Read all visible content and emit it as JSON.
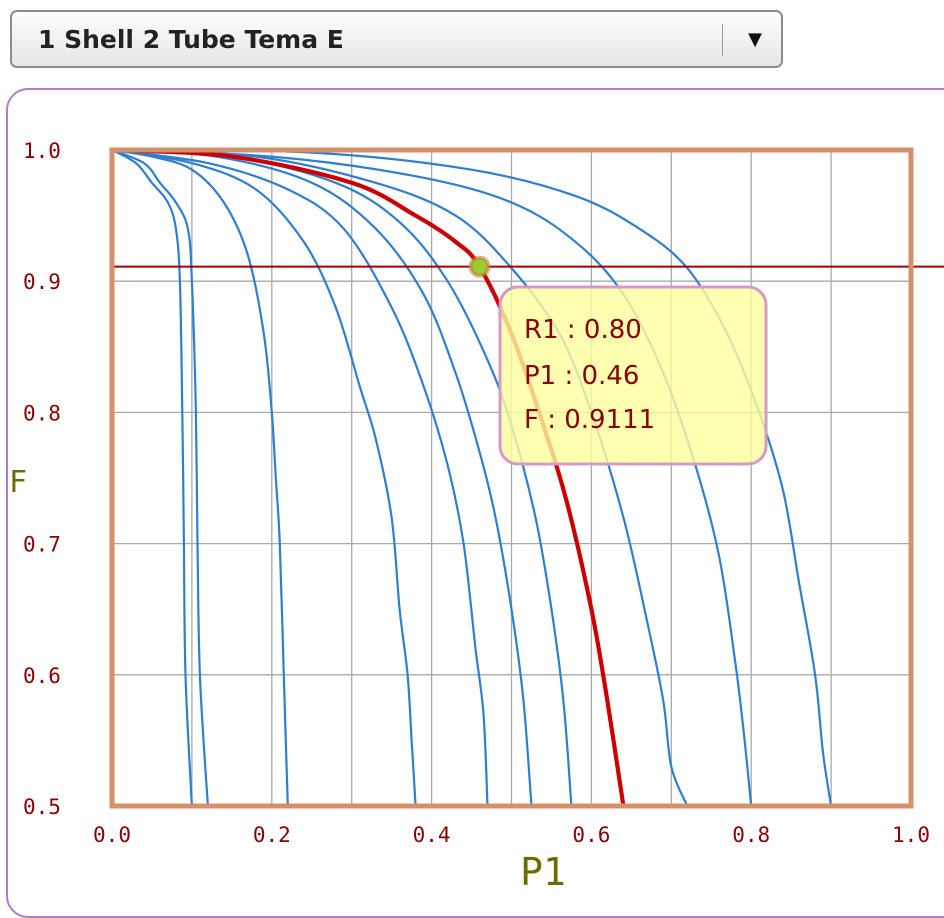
{
  "dropdown": {
    "selected": "1 Shell 2 Tube Tema E",
    "arrow_icon": "triangle-down-icon"
  },
  "chart_data": {
    "type": "line",
    "xlabel": "P1",
    "ylabel": "F",
    "xlim": [
      0.0,
      1.0
    ],
    "ylim": [
      0.5,
      1.0
    ],
    "x_ticks": [
      "0.0",
      "0.2",
      "0.4",
      "0.6",
      "0.8",
      "1.0"
    ],
    "y_ticks": [
      "1.0",
      "0.9",
      "0.8",
      "0.7",
      "0.6",
      "0.5"
    ],
    "grid": true,
    "series": [
      {
        "values": [
          [
            0.0,
            1.0
          ],
          [
            0.03,
            0.99
          ],
          [
            0.05,
            0.975
          ],
          [
            0.07,
            0.96
          ],
          [
            0.08,
            0.94
          ],
          [
            0.085,
            0.9
          ],
          [
            0.088,
            0.8
          ],
          [
            0.09,
            0.7
          ],
          [
            0.092,
            0.6
          ],
          [
            0.1,
            0.5
          ]
        ]
      },
      {
        "values": [
          [
            0.0,
            1.0
          ],
          [
            0.04,
            0.99
          ],
          [
            0.06,
            0.975
          ],
          [
            0.08,
            0.96
          ],
          [
            0.095,
            0.94
          ],
          [
            0.1,
            0.9
          ],
          [
            0.105,
            0.8
          ],
          [
            0.107,
            0.7
          ],
          [
            0.11,
            0.6
          ],
          [
            0.12,
            0.5
          ]
        ]
      },
      {
        "values": [
          [
            0.0,
            1.0
          ],
          [
            0.05,
            0.995
          ],
          [
            0.1,
            0.985
          ],
          [
            0.14,
            0.96
          ],
          [
            0.17,
            0.92
          ],
          [
            0.19,
            0.86
          ],
          [
            0.2,
            0.8
          ],
          [
            0.205,
            0.75
          ],
          [
            0.21,
            0.7
          ],
          [
            0.215,
            0.6
          ],
          [
            0.22,
            0.5
          ]
        ]
      },
      {
        "values": [
          [
            0.0,
            1.0
          ],
          [
            0.1,
            0.99
          ],
          [
            0.18,
            0.97
          ],
          [
            0.24,
            0.93
          ],
          [
            0.28,
            0.88
          ],
          [
            0.31,
            0.82
          ],
          [
            0.33,
            0.78
          ],
          [
            0.35,
            0.72
          ],
          [
            0.36,
            0.65
          ],
          [
            0.37,
            0.6
          ],
          [
            0.375,
            0.55
          ],
          [
            0.38,
            0.5
          ]
        ]
      },
      {
        "values": [
          [
            0.0,
            1.0
          ],
          [
            0.12,
            0.99
          ],
          [
            0.22,
            0.97
          ],
          [
            0.29,
            0.94
          ],
          [
            0.35,
            0.88
          ],
          [
            0.39,
            0.82
          ],
          [
            0.42,
            0.76
          ],
          [
            0.44,
            0.7
          ],
          [
            0.455,
            0.62
          ],
          [
            0.465,
            0.57
          ],
          [
            0.47,
            0.5
          ]
        ]
      },
      {
        "values": [
          [
            0.0,
            1.0
          ],
          [
            0.13,
            0.995
          ],
          [
            0.25,
            0.975
          ],
          [
            0.33,
            0.94
          ],
          [
            0.39,
            0.89
          ],
          [
            0.43,
            0.83
          ],
          [
            0.46,
            0.77
          ],
          [
            0.48,
            0.72
          ],
          [
            0.5,
            0.65
          ],
          [
            0.515,
            0.58
          ],
          [
            0.525,
            0.5
          ]
        ]
      },
      {
        "values": [
          [
            0.0,
            1.0
          ],
          [
            0.15,
            0.995
          ],
          [
            0.28,
            0.975
          ],
          [
            0.36,
            0.945
          ],
          [
            0.42,
            0.9
          ],
          [
            0.47,
            0.84
          ],
          [
            0.5,
            0.79
          ],
          [
            0.53,
            0.72
          ],
          [
            0.55,
            0.65
          ],
          [
            0.565,
            0.58
          ],
          [
            0.575,
            0.5
          ]
        ]
      },
      {
        "name": "R1 : 0.80",
        "highlight": true,
        "values": [
          [
            0.0,
            1.0
          ],
          [
            0.15,
            0.995
          ],
          [
            0.3,
            0.975
          ],
          [
            0.38,
            0.95
          ],
          [
            0.43,
            0.93
          ],
          [
            0.46,
            0.9111
          ],
          [
            0.5,
            0.86
          ],
          [
            0.54,
            0.79
          ],
          [
            0.57,
            0.73
          ],
          [
            0.6,
            0.65
          ],
          [
            0.62,
            0.58
          ],
          [
            0.64,
            0.5
          ]
        ]
      },
      {
        "values": [
          [
            0.0,
            1.0
          ],
          [
            0.18,
            0.995
          ],
          [
            0.33,
            0.975
          ],
          [
            0.43,
            0.95
          ],
          [
            0.5,
            0.91
          ],
          [
            0.56,
            0.86
          ],
          [
            0.6,
            0.8
          ],
          [
            0.64,
            0.72
          ],
          [
            0.67,
            0.64
          ],
          [
            0.69,
            0.58
          ],
          [
            0.7,
            0.53
          ],
          [
            0.72,
            0.5
          ]
        ]
      },
      {
        "values": [
          [
            0.0,
            1.0
          ],
          [
            0.2,
            0.995
          ],
          [
            0.38,
            0.98
          ],
          [
            0.5,
            0.96
          ],
          [
            0.58,
            0.93
          ],
          [
            0.64,
            0.89
          ],
          [
            0.69,
            0.83
          ],
          [
            0.73,
            0.76
          ],
          [
            0.76,
            0.69
          ],
          [
            0.78,
            0.61
          ],
          [
            0.79,
            0.56
          ],
          [
            0.8,
            0.5
          ]
        ]
      },
      {
        "values": [
          [
            0.0,
            1.0
          ],
          [
            0.25,
            0.998
          ],
          [
            0.45,
            0.985
          ],
          [
            0.58,
            0.965
          ],
          [
            0.66,
            0.94
          ],
          [
            0.72,
            0.91
          ],
          [
            0.77,
            0.86
          ],
          [
            0.81,
            0.8
          ],
          [
            0.84,
            0.74
          ],
          [
            0.86,
            0.67
          ],
          [
            0.88,
            0.6
          ],
          [
            0.89,
            0.54
          ],
          [
            0.9,
            0.5
          ]
        ]
      }
    ],
    "marker": {
      "x": 0.46,
      "y": 0.9111
    },
    "tooltip": {
      "r1": "R1  : 0.80",
      "p1": "P1  : 0.46",
      "f": "F  : 0.9111"
    },
    "colors": {
      "curve": "#2f7fd0",
      "highlight": "#cc0000",
      "crosshair": "#a40000",
      "frame": "#d4906a",
      "marker": "#9acd32"
    }
  }
}
